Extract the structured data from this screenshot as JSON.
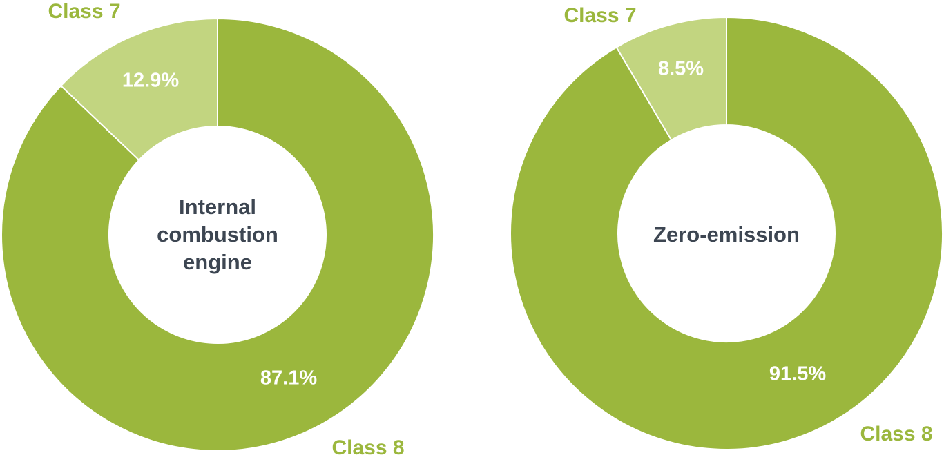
{
  "chart_data": [
    {
      "type": "pie",
      "title": "Internal combustion engine",
      "center_lines": [
        "Internal",
        "combustion",
        "engine"
      ],
      "slices": [
        {
          "label": "Class 7",
          "value": 12.9,
          "value_label": "12.9%",
          "color": "#C2D580"
        },
        {
          "label": "Class 8",
          "value": 87.1,
          "value_label": "87.1%",
          "color": "#9BB73D"
        }
      ]
    },
    {
      "type": "pie",
      "title": "Zero-emission",
      "center_lines": [
        "Zero-emission"
      ],
      "slices": [
        {
          "label": "Class 7",
          "value": 8.5,
          "value_label": "8.5%",
          "color": "#C2D580"
        },
        {
          "label": "Class 8",
          "value": 91.5,
          "value_label": "91.5%",
          "color": "#9BB73D"
        }
      ]
    }
  ],
  "colors": {
    "label_text": "#9BB73D",
    "center_text": "#3D4652",
    "value_text": "#ffffff",
    "separator": "#ffffff"
  }
}
